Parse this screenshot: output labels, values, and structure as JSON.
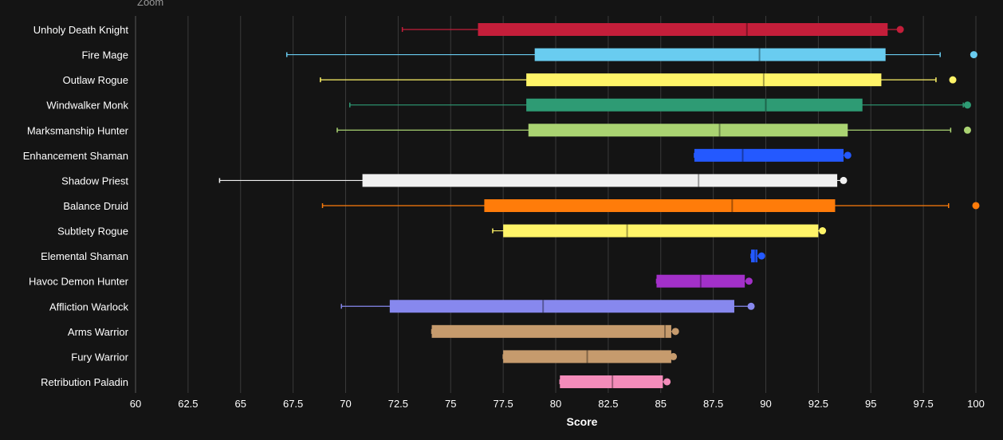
{
  "ui": {
    "zoom_label": "Zoom"
  },
  "chart_data": {
    "type": "boxplot",
    "title": "",
    "xlabel": "Score",
    "ylabel": "",
    "xlim": [
      60,
      100
    ],
    "x_ticks": [
      "60",
      "62.5",
      "65",
      "67.5",
      "70",
      "72.5",
      "75",
      "77.5",
      "80",
      "82.5",
      "85",
      "87.5",
      "90",
      "92.5",
      "95",
      "97.5",
      "100"
    ],
    "grid": true,
    "series": [
      {
        "name": "Unholy Death Knight",
        "color": "#C41E3A",
        "whisker_low": 72.7,
        "q1": 76.3,
        "median": 89.1,
        "q3": 95.8,
        "whisker_high": 96.3,
        "outliers": [
          96.4
        ]
      },
      {
        "name": "Fire Mage",
        "color": "#69CCF0",
        "whisker_low": 67.2,
        "q1": 79.0,
        "median": 89.7,
        "q3": 95.7,
        "whisker_high": 98.3,
        "outliers": [
          99.9
        ]
      },
      {
        "name": "Outlaw Rogue",
        "color": "#FFF468",
        "whisker_low": 68.8,
        "q1": 78.6,
        "median": 89.9,
        "q3": 95.5,
        "whisker_high": 98.1,
        "outliers": [
          98.9
        ]
      },
      {
        "name": "Windwalker Monk",
        "color": "#2E9B74",
        "whisker_low": 70.2,
        "q1": 78.6,
        "median": 90.0,
        "q3": 94.6,
        "whisker_high": 99.4,
        "outliers": [
          99.6
        ]
      },
      {
        "name": "Marksmanship Hunter",
        "color": "#AAD372",
        "whisker_low": 69.6,
        "q1": 78.7,
        "median": 87.8,
        "q3": 93.9,
        "whisker_high": 98.8,
        "outliers": [
          99.6
        ]
      },
      {
        "name": "Enhancement Shaman",
        "color": "#2459FF",
        "whisker_low": 86.6,
        "q1": 86.6,
        "median": 88.9,
        "q3": 93.7,
        "whisker_high": 93.8,
        "outliers": [
          93.9
        ]
      },
      {
        "name": "Shadow Priest",
        "color": "#F0F0F0",
        "whisker_low": 64.0,
        "q1": 70.8,
        "median": 86.8,
        "q3": 93.4,
        "whisker_high": 93.6,
        "outliers": [
          93.7
        ]
      },
      {
        "name": "Balance Druid",
        "color": "#FF7C0A",
        "whisker_low": 68.9,
        "q1": 76.6,
        "median": 88.4,
        "q3": 93.3,
        "whisker_high": 98.7,
        "outliers": [
          100.0
        ]
      },
      {
        "name": "Subtlety Rogue",
        "color": "#FFF468",
        "whisker_low": 77.0,
        "q1": 77.5,
        "median": 83.4,
        "q3": 92.5,
        "whisker_high": 92.6,
        "outliers": [
          92.7
        ]
      },
      {
        "name": "Elemental Shaman",
        "color": "#2459FF",
        "whisker_low": 89.3,
        "q1": 89.3,
        "median": 89.5,
        "q3": 89.6,
        "whisker_high": 89.7,
        "outliers": [
          89.8
        ]
      },
      {
        "name": "Havoc Demon Hunter",
        "color": "#A330C9",
        "whisker_low": 84.8,
        "q1": 84.8,
        "median": 86.9,
        "q3": 89.0,
        "whisker_high": 89.1,
        "outliers": [
          89.2
        ]
      },
      {
        "name": "Affliction Warlock",
        "color": "#8788EE",
        "whisker_low": 69.8,
        "q1": 72.1,
        "median": 79.4,
        "q3": 88.5,
        "whisker_high": 89.2,
        "outliers": [
          89.3
        ]
      },
      {
        "name": "Arms Warrior",
        "color": "#C69B6D",
        "whisker_low": 74.1,
        "q1": 74.1,
        "median": 85.2,
        "q3": 85.5,
        "whisker_high": 85.6,
        "outliers": [
          85.7
        ]
      },
      {
        "name": "Fury Warrior",
        "color": "#C69B6D",
        "whisker_low": 77.5,
        "q1": 77.5,
        "median": 81.5,
        "q3": 85.5,
        "whisker_high": 85.6,
        "outliers": [
          85.6
        ]
      },
      {
        "name": "Retribution Paladin",
        "color": "#F48CBA",
        "whisker_low": 80.2,
        "q1": 80.2,
        "median": 82.7,
        "q3": 85.1,
        "whisker_high": 85.2,
        "outliers": [
          85.3
        ]
      }
    ]
  }
}
